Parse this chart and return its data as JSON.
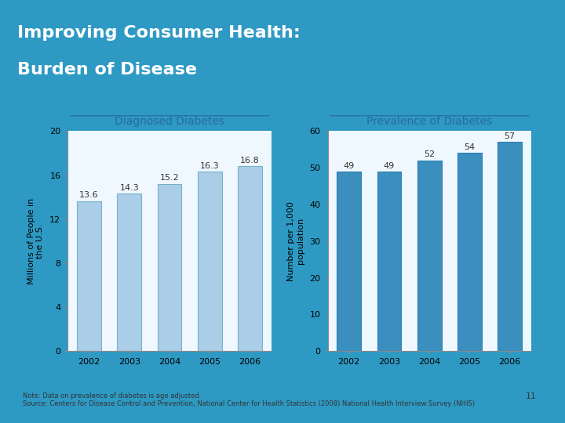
{
  "title_line1": "Improving Consumer Health:",
  "title_line2": "Burden of Disease",
  "title_bg_color": "#2E9AC4",
  "title_text_color": "#FFFFFF",
  "content_bg_color": "#FFFFFF",
  "outer_bg_color": "#2E9AC4",
  "chart_bg_color": "#F0F8FF",
  "left_chart_title": "Diagnosed Diabetes",
  "left_years": [
    "2002",
    "2003",
    "2004",
    "2005",
    "2006"
  ],
  "left_values": [
    13.6,
    14.3,
    15.2,
    16.3,
    16.8
  ],
  "left_ylabel": "Millions of People in\nthe U.S.",
  "left_ylim": [
    0,
    20
  ],
  "left_yticks": [
    0,
    4,
    8,
    12,
    16,
    20
  ],
  "left_bar_color": "#AACDE8",
  "left_bar_edge_color": "#7AAFC8",
  "right_chart_title": "Prevalence of Diabetes",
  "right_years": [
    "2002",
    "2003",
    "2004",
    "2005",
    "2006"
  ],
  "right_values": [
    49,
    49,
    52,
    54,
    57
  ],
  "right_ylabel": "Number per 1,000\npopulation",
  "right_ylim": [
    0,
    60
  ],
  "right_yticks": [
    0,
    10,
    20,
    30,
    40,
    50,
    60
  ],
  "right_bar_color": "#3A8FBF",
  "right_bar_edge_color": "#2A7FAF",
  "note_text": "Note: Data on prevalence of diabetes is age adjusted.\nSource: Centers for Disease Control and Prevention, National Center for Health Statistics (2008) National Health Interview Survey (NHIS)",
  "page_number": "11",
  "title_fontsize": 16,
  "chart_title_fontsize": 10,
  "bar_label_fontsize": 8,
  "axis_label_fontsize": 8,
  "tick_fontsize": 8,
  "note_fontsize": 6
}
